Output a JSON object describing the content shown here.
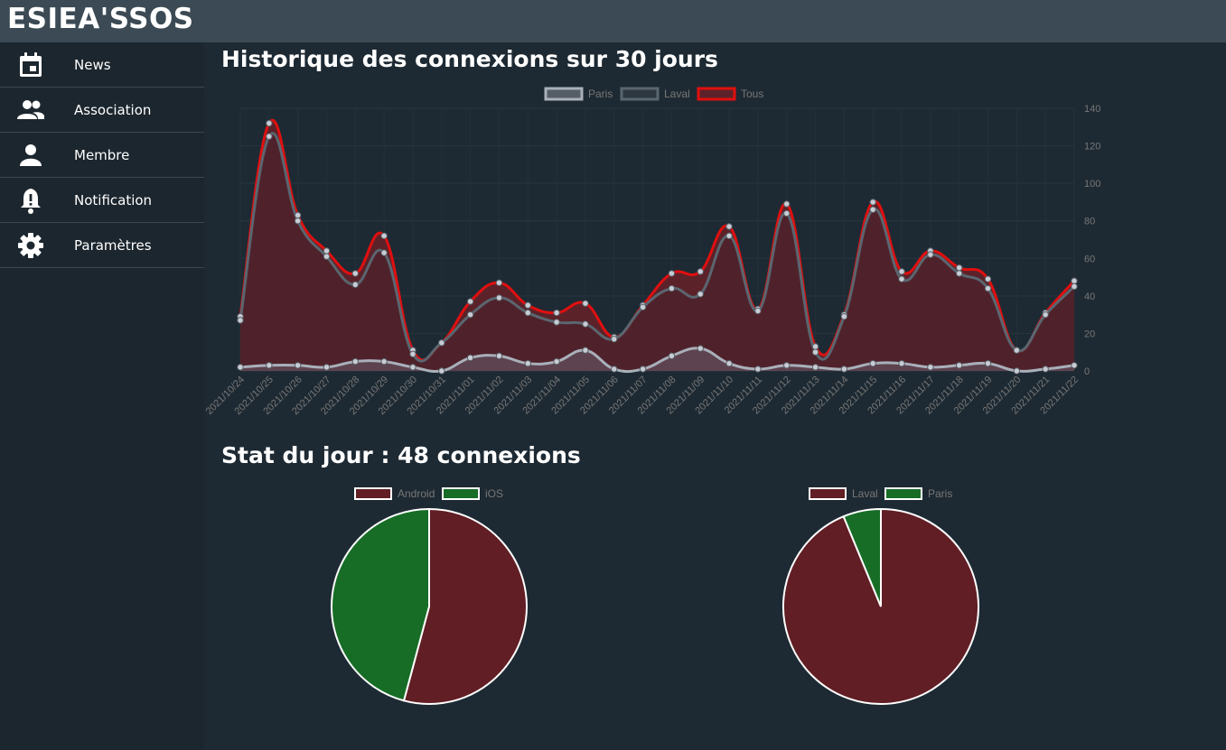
{
  "app": {
    "title": "ESIEA'SSOS"
  },
  "sidebar": {
    "items": [
      {
        "label": "News",
        "icon": "calendar-icon"
      },
      {
        "label": "Association",
        "icon": "people-icon"
      },
      {
        "label": "Membre",
        "icon": "person-icon"
      },
      {
        "label": "Notification",
        "icon": "bell-alert-icon"
      },
      {
        "label": "Paramètres",
        "icon": "gear-icon"
      }
    ]
  },
  "main": {
    "history_title": "Historique des connexions sur 30 jours",
    "today_title": "Stat du jour : 48 connexions"
  },
  "colors": {
    "paris": "#a9b0ba",
    "laval": "#5a6670",
    "tous": "#e00f0f",
    "fill": "#5c2229",
    "android": "#611e24",
    "ios": "#176d26"
  },
  "chart_data": [
    {
      "type": "area",
      "x": [
        "2021/10/24",
        "2021/10/25",
        "2021/10/26",
        "2021/10/27",
        "2021/10/28",
        "2021/10/29",
        "2021/10/30",
        "2021/10/31",
        "2021/11/01",
        "2021/11/02",
        "2021/11/03",
        "2021/11/04",
        "2021/11/05",
        "2021/11/06",
        "2021/11/07",
        "2021/11/08",
        "2021/11/09",
        "2021/11/10",
        "2021/11/11",
        "2021/11/12",
        "2021/11/13",
        "2021/11/14",
        "2021/11/15",
        "2021/11/16",
        "2021/11/17",
        "2021/11/18",
        "2021/11/19",
        "2021/11/20",
        "2021/11/21",
        "2021/11/22"
      ],
      "series": [
        {
          "name": "Paris",
          "values": [
            2,
            3,
            3,
            2,
            5,
            5,
            2,
            0,
            7,
            8,
            4,
            5,
            11,
            1,
            1,
            8,
            12,
            4,
            1,
            3,
            2,
            1,
            4,
            4,
            2,
            3,
            4,
            0,
            1,
            3
          ]
        },
        {
          "name": "Laval",
          "values": [
            27,
            125,
            80,
            61,
            46,
            63,
            9,
            15,
            30,
            39,
            31,
            26,
            25,
            17,
            34,
            44,
            41,
            72,
            32,
            84,
            10,
            29,
            86,
            49,
            62,
            52,
            44,
            11,
            30,
            45
          ]
        },
        {
          "name": "Tous",
          "values": [
            29,
            132,
            83,
            64,
            52,
            72,
            11,
            15,
            37,
            47,
            35,
            31,
            36,
            18,
            35,
            52,
            53,
            77,
            33,
            89,
            13,
            30,
            90,
            53,
            64,
            55,
            49,
            11,
            31,
            48
          ]
        }
      ],
      "ylim": [
        0,
        140
      ],
      "yticks": [
        0,
        20,
        40,
        60,
        80,
        100,
        120,
        140
      ],
      "legend": "top",
      "grid": true
    },
    {
      "type": "pie",
      "labels": [
        "Android",
        "iOS"
      ],
      "values": [
        26,
        22
      ],
      "legend": "top"
    },
    {
      "type": "pie",
      "labels": [
        "Laval",
        "Paris"
      ],
      "values": [
        45,
        3
      ],
      "legend": "top"
    }
  ]
}
